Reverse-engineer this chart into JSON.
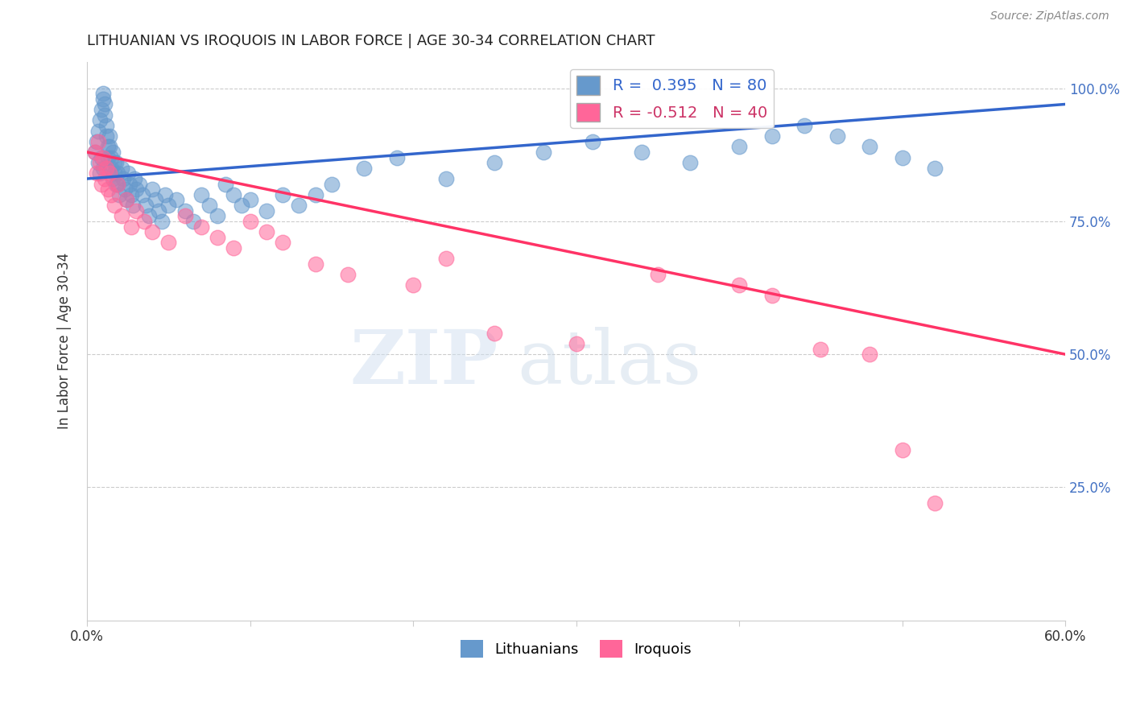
{
  "title": "LITHUANIAN VS IROQUOIS IN LABOR FORCE | AGE 30-34 CORRELATION CHART",
  "source": "Source: ZipAtlas.com",
  "ylabel": "In Labor Force | Age 30-34",
  "xlim": [
    0.0,
    0.6
  ],
  "ylim": [
    0.0,
    1.05
  ],
  "blue_color": "#6699CC",
  "pink_color": "#FF6699",
  "blue_line_color": "#3366CC",
  "pink_line_color": "#FF3366",
  "blue_r": 0.395,
  "blue_n": 80,
  "pink_r": -0.512,
  "pink_n": 40,
  "watermark_zip": "ZIP",
  "watermark_atlas": "atlas",
  "blue_scatter_x": [
    0.005,
    0.006,
    0.007,
    0.007,
    0.008,
    0.008,
    0.009,
    0.009,
    0.01,
    0.01,
    0.01,
    0.011,
    0.011,
    0.012,
    0.012,
    0.013,
    0.013,
    0.014,
    0.014,
    0.015,
    0.015,
    0.016,
    0.016,
    0.017,
    0.017,
    0.018,
    0.018,
    0.019,
    0.019,
    0.02,
    0.021,
    0.022,
    0.023,
    0.024,
    0.025,
    0.026,
    0.027,
    0.028,
    0.029,
    0.03,
    0.032,
    0.034,
    0.036,
    0.038,
    0.04,
    0.042,
    0.044,
    0.046,
    0.048,
    0.05,
    0.055,
    0.06,
    0.065,
    0.07,
    0.075,
    0.08,
    0.085,
    0.09,
    0.095,
    0.1,
    0.11,
    0.12,
    0.13,
    0.14,
    0.15,
    0.17,
    0.19,
    0.22,
    0.25,
    0.28,
    0.31,
    0.34,
    0.37,
    0.4,
    0.42,
    0.44,
    0.46,
    0.48,
    0.5,
    0.52
  ],
  "blue_scatter_y": [
    0.88,
    0.9,
    0.86,
    0.92,
    0.84,
    0.94,
    0.87,
    0.96,
    0.85,
    0.98,
    0.99,
    0.97,
    0.95,
    0.93,
    0.91,
    0.89,
    0.87,
    0.91,
    0.89,
    0.87,
    0.85,
    0.83,
    0.88,
    0.86,
    0.84,
    0.82,
    0.86,
    0.84,
    0.82,
    0.8,
    0.85,
    0.83,
    0.81,
    0.79,
    0.84,
    0.82,
    0.8,
    0.78,
    0.83,
    0.81,
    0.82,
    0.8,
    0.78,
    0.76,
    0.81,
    0.79,
    0.77,
    0.75,
    0.8,
    0.78,
    0.79,
    0.77,
    0.75,
    0.8,
    0.78,
    0.76,
    0.82,
    0.8,
    0.78,
    0.79,
    0.77,
    0.8,
    0.78,
    0.8,
    0.82,
    0.85,
    0.87,
    0.83,
    0.86,
    0.88,
    0.9,
    0.88,
    0.86,
    0.89,
    0.91,
    0.93,
    0.91,
    0.89,
    0.87,
    0.85
  ],
  "pink_scatter_x": [
    0.005,
    0.006,
    0.007,
    0.008,
    0.009,
    0.01,
    0.011,
    0.012,
    0.013,
    0.014,
    0.015,
    0.017,
    0.019,
    0.021,
    0.024,
    0.027,
    0.03,
    0.035,
    0.04,
    0.05,
    0.06,
    0.07,
    0.08,
    0.09,
    0.1,
    0.11,
    0.12,
    0.14,
    0.16,
    0.2,
    0.22,
    0.25,
    0.3,
    0.35,
    0.4,
    0.42,
    0.45,
    0.48,
    0.5,
    0.52
  ],
  "pink_scatter_y": [
    0.88,
    0.84,
    0.9,
    0.86,
    0.82,
    0.87,
    0.83,
    0.85,
    0.81,
    0.84,
    0.8,
    0.78,
    0.82,
    0.76,
    0.79,
    0.74,
    0.77,
    0.75,
    0.73,
    0.71,
    0.76,
    0.74,
    0.72,
    0.7,
    0.75,
    0.73,
    0.71,
    0.67,
    0.65,
    0.63,
    0.68,
    0.54,
    0.52,
    0.65,
    0.63,
    0.61,
    0.51,
    0.5,
    0.32,
    0.22
  ],
  "blue_line_x": [
    0.0,
    0.6
  ],
  "blue_line_y": [
    0.83,
    0.97
  ],
  "pink_line_x": [
    0.0,
    0.6
  ],
  "pink_line_y": [
    0.88,
    0.5
  ]
}
